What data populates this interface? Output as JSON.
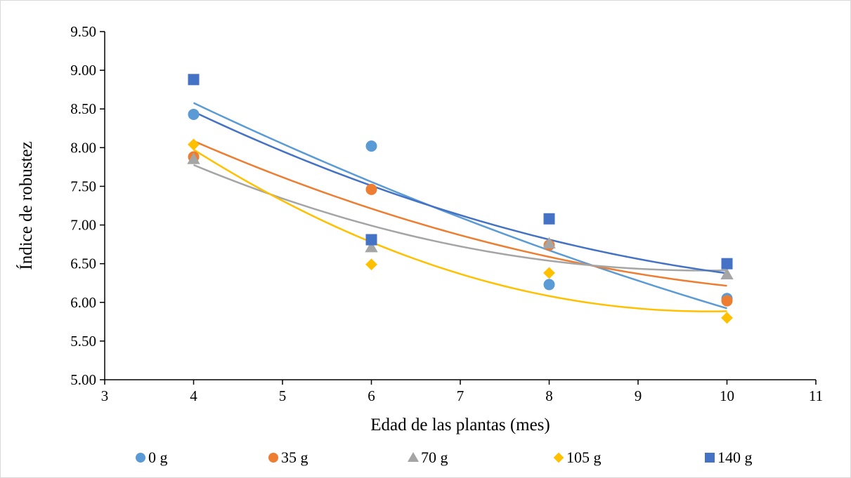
{
  "chart_data": {
    "type": "scatter",
    "title": "",
    "xlabel": "Edad de las plantas (mes)",
    "ylabel": "Índice de robustez",
    "xlim": [
      3,
      11
    ],
    "ylim": [
      5.0,
      9.5
    ],
    "x_ticks": [
      "3",
      "4",
      "5",
      "6",
      "7",
      "8",
      "9",
      "10",
      "11"
    ],
    "y_ticks": [
      "5.00",
      "5.50",
      "6.00",
      "6.50",
      "7.00",
      "7.50",
      "8.00",
      "8.50",
      "9.00",
      "9.50"
    ],
    "grid": false,
    "legend_position": "bottom",
    "trendline": "polynomial order 2",
    "series": [
      {
        "name": "0 g",
        "marker": "circle",
        "color": "#5B9BD5",
        "x": [
          4,
          6,
          8,
          10
        ],
        "y": [
          8.43,
          8.02,
          6.23,
          6.05
        ],
        "trend": [
          8.58,
          7.55,
          6.68,
          5.92
        ]
      },
      {
        "name": "35 g",
        "marker": "circle",
        "color": "#ED7D31",
        "x": [
          4,
          6,
          8,
          10
        ],
        "y": [
          7.88,
          7.46,
          6.74,
          6.02
        ],
        "trend": [
          8.1,
          7.17,
          6.63,
          6.2
        ]
      },
      {
        "name": "70 g",
        "marker": "triangle",
        "color": "#A5A5A5",
        "x": [
          4,
          6,
          8,
          10
        ],
        "y": [
          7.85,
          6.71,
          6.76,
          6.36
        ],
        "trend": [
          7.78,
          6.98,
          6.55,
          6.41
        ]
      },
      {
        "name": "105 g",
        "marker": "diamond",
        "color": "#FFC000",
        "x": [
          4,
          6,
          8,
          10
        ],
        "y": [
          8.04,
          6.49,
          6.38,
          5.8
        ],
        "trend": [
          7.98,
          6.76,
          6.1,
          5.88
        ]
      },
      {
        "name": "140 g",
        "marker": "square",
        "color": "#4472C4",
        "x": [
          4,
          6,
          8,
          10
        ],
        "y": [
          8.88,
          6.81,
          7.08,
          6.5
        ],
        "trend": [
          8.47,
          7.49,
          6.83,
          6.37
        ]
      }
    ]
  }
}
